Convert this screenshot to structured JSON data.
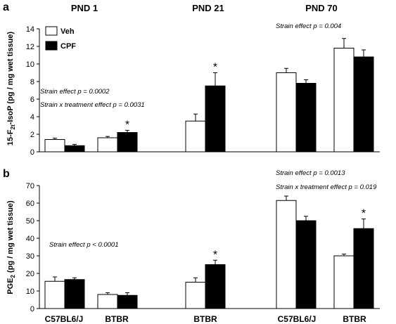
{
  "chart_data": [
    {
      "type": "bar",
      "panel": "a",
      "ylabel_parts": {
        "pre": "15-F",
        "sub": "2t",
        "post": "-IsoP (pg / mg wet tissue)"
      },
      "ylim": [
        0,
        14
      ],
      "yticks": [
        "0",
        "2",
        "4",
        "6",
        "8",
        "10",
        "12",
        "14"
      ],
      "legend": [
        {
          "name": "Veh",
          "fill": "#ffffff"
        },
        {
          "name": "CPF",
          "fill": "#000000"
        }
      ],
      "group_labels": [
        "PND 1",
        "PND 21",
        "PND 70"
      ],
      "annotations": [
        "Strain effect  p = 0.0002",
        "Strain  x treatment effect  p = 0.0031",
        "Strain effect  p = 0.004"
      ],
      "significance_marker": "*",
      "series": [
        {
          "name": "Veh",
          "values": [
            1.4,
            1.6,
            3.5,
            9.0,
            11.8
          ],
          "errors": [
            0.15,
            0.15,
            0.8,
            0.5,
            1.1
          ]
        },
        {
          "name": "CPF",
          "values": [
            0.7,
            2.2,
            7.5,
            7.8,
            10.8
          ],
          "errors": [
            0.15,
            0.25,
            1.5,
            0.4,
            0.8
          ]
        }
      ],
      "significant": [
        false,
        true,
        true,
        false,
        false
      ]
    },
    {
      "type": "bar",
      "panel": "b",
      "ylabel_parts": {
        "pre": "PGE",
        "sub": "2",
        "post": " (pg / mg wet  tissue)"
      },
      "ylim": [
        0,
        70
      ],
      "yticks": [
        "0",
        "10",
        "20",
        "30",
        "40",
        "50",
        "60",
        "70"
      ],
      "categories": [
        "C57BL6/J",
        "BTBR",
        "BTBR",
        "C57BL6/J",
        "BTBR"
      ],
      "annotations": [
        "Strain effect  p < 0.0001",
        "Strain effect  p = 0.0013",
        "Strain  x treatment effect  p = 0.019"
      ],
      "significance_marker": "*",
      "series": [
        {
          "name": "Veh",
          "values": [
            15.5,
            8.0,
            15.0,
            61.5,
            30.0
          ],
          "errors": [
            2.5,
            1.0,
            2.5,
            2.5,
            1.0
          ]
        },
        {
          "name": "CPF",
          "values": [
            16.5,
            7.5,
            25.0,
            50.0,
            45.5
          ],
          "errors": [
            1.0,
            1.5,
            2.5,
            2.5,
            5.5
          ]
        }
      ],
      "significant": [
        false,
        false,
        true,
        false,
        true
      ]
    }
  ]
}
